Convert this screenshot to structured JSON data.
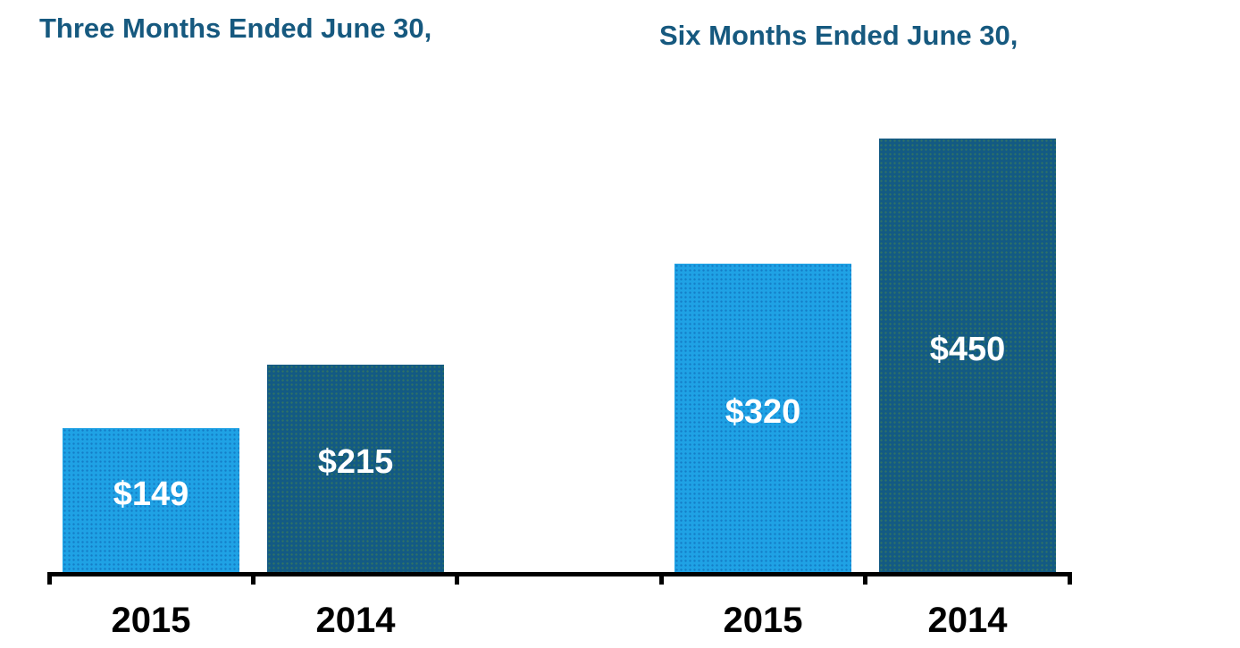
{
  "colors": {
    "light_blue": "#1FA2E5",
    "dark_blue": "#135A84",
    "title_blue": "#16597F",
    "axis_black": "#000000",
    "label_white": "#FFFFFF",
    "year_black": "#000000",
    "background": "#FFFFFF"
  },
  "chart_data": {
    "type": "bar",
    "groups": [
      {
        "title": "Three Months Ended June 30,",
        "categories": [
          "2015",
          "2014"
        ],
        "values": [
          149,
          215
        ],
        "labels": [
          "$149",
          "$215"
        ],
        "series_colors": [
          "light_blue",
          "dark_blue"
        ]
      },
      {
        "title": "Six Months Ended June 30,",
        "categories": [
          "2015",
          "2014"
        ],
        "values": [
          320,
          450
        ],
        "labels": [
          "$320",
          "$450"
        ],
        "series_colors": [
          "light_blue",
          "dark_blue"
        ]
      }
    ],
    "value_prefix": "$",
    "ylim": [
      0,
      475
    ],
    "grid": false,
    "legend": false,
    "y_axis_visible": false,
    "data_label_position": "inside-center"
  }
}
